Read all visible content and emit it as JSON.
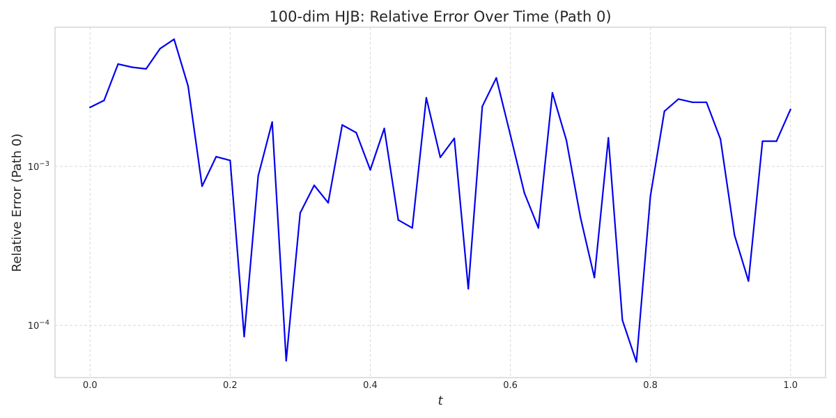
{
  "chart_data": {
    "type": "line",
    "title": "100-dim HJB: Relative Error Over Time (Path 0)",
    "xlabel": "t",
    "ylabel": "Relative Error (Path 0)",
    "xlim": [
      -0.05,
      1.05
    ],
    "ylim": [
      4.7e-05,
      0.0075
    ],
    "yscale": "log",
    "grid": true,
    "x_ticks": [
      {
        "value": 0.0,
        "label": "0.0"
      },
      {
        "value": 0.2,
        "label": "0.2"
      },
      {
        "value": 0.4,
        "label": "0.4"
      },
      {
        "value": 0.6,
        "label": "0.6"
      },
      {
        "value": 0.8,
        "label": "0.8"
      },
      {
        "value": 1.0,
        "label": "1.0"
      }
    ],
    "y_ticks": [
      {
        "value": 0.0001,
        "base": "10",
        "exponent": "−4"
      },
      {
        "value": 0.001,
        "base": "10",
        "exponent": "−3"
      }
    ],
    "series": [
      {
        "color": "#0000ee",
        "x": [
          0.0,
          0.02,
          0.04,
          0.06,
          0.08,
          0.1,
          0.12,
          0.14,
          0.16,
          0.18,
          0.2,
          0.22,
          0.24,
          0.26,
          0.28,
          0.3,
          0.32,
          0.34,
          0.36,
          0.38,
          0.4,
          0.42,
          0.44,
          0.46,
          0.48,
          0.5,
          0.52,
          0.54,
          0.56,
          0.58,
          0.6,
          0.62,
          0.64,
          0.66,
          0.68,
          0.7,
          0.72,
          0.74,
          0.76,
          0.78,
          0.8,
          0.82,
          0.84,
          0.86,
          0.88,
          0.9,
          0.92,
          0.94,
          0.96,
          0.98,
          1.0
        ],
        "y": [
          0.00235,
          0.0026,
          0.0044,
          0.0042,
          0.0041,
          0.0055,
          0.0063,
          0.0032,
          0.00075,
          0.00115,
          0.00109,
          8.5e-05,
          0.00087,
          0.0019,
          6e-05,
          0.00051,
          0.00076,
          0.00059,
          0.00182,
          0.00163,
          0.00095,
          0.00173,
          0.00046,
          0.00041,
          0.0027,
          0.00114,
          0.0015,
          0.00017,
          0.00238,
          0.0036,
          0.00158,
          0.00068,
          0.00041,
          0.0029,
          0.00146,
          0.00048,
          0.0002,
          0.00151,
          0.000108,
          5.9e-05,
          0.00065,
          0.00222,
          0.00265,
          0.00253,
          0.00253,
          0.00148,
          0.00037,
          0.00019,
          0.00144,
          0.00144,
          0.00228
        ]
      }
    ]
  }
}
